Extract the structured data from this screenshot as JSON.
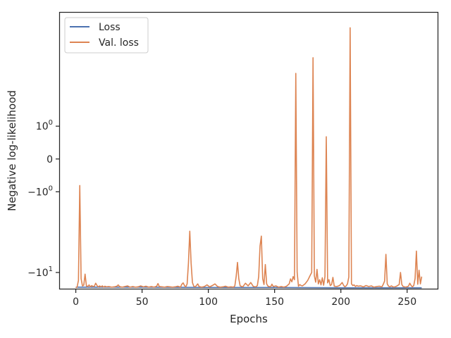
{
  "chart_data": {
    "type": "line",
    "title": "",
    "xlabel": "Epochs",
    "ylabel": "Negative log-likelihood",
    "yscale": "symlog",
    "xlim": [
      -12,
      273
    ],
    "ylim": [
      -14.5,
      21
    ],
    "grid": false,
    "legend_position": "top-left",
    "x_ticks": [
      {
        "value": 0,
        "label": "0"
      },
      {
        "value": 50,
        "label": "50"
      },
      {
        "value": 100,
        "label": "100"
      },
      {
        "value": 150,
        "label": "150"
      },
      {
        "value": 200,
        "label": "200"
      },
      {
        "value": 250,
        "label": "250"
      }
    ],
    "y_ticks": [
      {
        "value": 1,
        "base": "10",
        "exp": "0",
        "sign": ""
      },
      {
        "value": 0,
        "base": "0",
        "exp": "",
        "sign": ""
      },
      {
        "value": -1,
        "base": "10",
        "exp": "0",
        "sign": "−"
      },
      {
        "value": -10,
        "base": "10",
        "exp": "1",
        "sign": "−"
      }
    ],
    "series": [
      {
        "name": "Loss",
        "color": "#4c72b0",
        "points": [
          [
            0,
            -14.0
          ],
          [
            50,
            -14.0
          ],
          [
            100,
            -14.1
          ],
          [
            150,
            -14.1
          ],
          [
            200,
            -14.2
          ],
          [
            261,
            -14.2
          ]
        ]
      },
      {
        "name": "Val. loss",
        "color": "#dd8452",
        "points": [
          [
            0,
            -14.2
          ],
          [
            1,
            -13.9
          ],
          [
            2,
            -12.0
          ],
          [
            3,
            -0.75
          ],
          [
            4,
            -11.5
          ],
          [
            5,
            -13.6
          ],
          [
            6,
            -13.4
          ],
          [
            7,
            -10.4
          ],
          [
            8,
            -13.6
          ],
          [
            9,
            -13.8
          ],
          [
            10,
            -13.3
          ],
          [
            11,
            -13.9
          ],
          [
            12,
            -13.5
          ],
          [
            13,
            -13.8
          ],
          [
            14,
            -13.7
          ],
          [
            15,
            -12.8
          ],
          [
            16,
            -13.5
          ],
          [
            17,
            -13.9
          ],
          [
            18,
            -13.6
          ],
          [
            19,
            -13.9
          ],
          [
            20,
            -13.6
          ],
          [
            21,
            -14.0
          ],
          [
            22,
            -13.7
          ],
          [
            23,
            -13.9
          ],
          [
            25,
            -13.8
          ],
          [
            27,
            -14.0
          ],
          [
            29,
            -13.9
          ],
          [
            31,
            -13.7
          ],
          [
            32,
            -13.3
          ],
          [
            33,
            -13.8
          ],
          [
            35,
            -14.0
          ],
          [
            37,
            -13.8
          ],
          [
            39,
            -13.6
          ],
          [
            41,
            -14.0
          ],
          [
            43,
            -13.8
          ],
          [
            45,
            -14.0
          ],
          [
            47,
            -13.9
          ],
          [
            49,
            -13.6
          ],
          [
            51,
            -13.9
          ],
          [
            53,
            -13.7
          ],
          [
            55,
            -14.0
          ],
          [
            57,
            -13.8
          ],
          [
            59,
            -14.0
          ],
          [
            61,
            -13.7
          ],
          [
            62,
            -12.9
          ],
          [
            63,
            -13.8
          ],
          [
            65,
            -13.9
          ],
          [
            67,
            -14.0
          ],
          [
            69,
            -13.8
          ],
          [
            71,
            -13.9
          ],
          [
            73,
            -14.0
          ],
          [
            75,
            -13.9
          ],
          [
            77,
            -13.7
          ],
          [
            79,
            -14.0
          ],
          [
            80,
            -13.1
          ],
          [
            81,
            -12.7
          ],
          [
            82,
            -13.5
          ],
          [
            83,
            -13.9
          ],
          [
            84,
            -13.0
          ],
          [
            85,
            -8.0
          ],
          [
            86,
            -3.6
          ],
          [
            87,
            -8.0
          ],
          [
            88,
            -12.6
          ],
          [
            89,
            -13.7
          ],
          [
            90,
            -13.9
          ],
          [
            91,
            -13.5
          ],
          [
            92,
            -13.0
          ],
          [
            93,
            -13.8
          ],
          [
            95,
            -14.0
          ],
          [
            97,
            -13.8
          ],
          [
            99,
            -13.3
          ],
          [
            101,
            -13.9
          ],
          [
            103,
            -13.5
          ],
          [
            105,
            -13.0
          ],
          [
            107,
            -13.8
          ],
          [
            109,
            -14.0
          ],
          [
            111,
            -13.9
          ],
          [
            113,
            -13.7
          ],
          [
            115,
            -14.0
          ],
          [
            117,
            -13.9
          ],
          [
            119,
            -14.0
          ],
          [
            120,
            -13.6
          ],
          [
            121,
            -11.0
          ],
          [
            122,
            -7.9
          ],
          [
            123,
            -11.6
          ],
          [
            124,
            -13.6
          ],
          [
            126,
            -13.9
          ],
          [
            128,
            -12.8
          ],
          [
            130,
            -13.6
          ],
          [
            132,
            -12.6
          ],
          [
            134,
            -13.8
          ],
          [
            136,
            -13.9
          ],
          [
            137,
            -13.5
          ],
          [
            138,
            -11.0
          ],
          [
            139,
            -5.3
          ],
          [
            140,
            -4.1
          ],
          [
            141,
            -11.5
          ],
          [
            142,
            -13.2
          ],
          [
            143,
            -8.3
          ],
          [
            144,
            -13.0
          ],
          [
            145,
            -13.7
          ],
          [
            147,
            -13.9
          ],
          [
            148,
            -13.1
          ],
          [
            149,
            -13.8
          ],
          [
            151,
            -13.6
          ],
          [
            153,
            -14.0
          ],
          [
            155,
            -13.8
          ],
          [
            157,
            -14.0
          ],
          [
            159,
            -13.7
          ],
          [
            161,
            -13.0
          ],
          [
            162,
            -11.6
          ],
          [
            163,
            -12.4
          ],
          [
            164,
            -11.0
          ],
          [
            165,
            -11.8
          ],
          [
            166,
            5.1
          ],
          [
            167,
            -9.9
          ],
          [
            168,
            -13.7
          ],
          [
            169,
            -13.2
          ],
          [
            170,
            -13.5
          ],
          [
            171,
            -13.6
          ],
          [
            173,
            -13.0
          ],
          [
            175,
            -12.0
          ],
          [
            177,
            -10.6
          ],
          [
            178,
            -10.0
          ],
          [
            179,
            7.5
          ],
          [
            180,
            -10.8
          ],
          [
            181,
            -12.5
          ],
          [
            182,
            -9.3
          ],
          [
            183,
            -13.0
          ],
          [
            184,
            -11.8
          ],
          [
            185,
            -13.3
          ],
          [
            186,
            -11.3
          ],
          [
            187,
            -13.4
          ],
          [
            188,
            -11.0
          ],
          [
            189,
            0.6
          ],
          [
            190,
            -12.7
          ],
          [
            191,
            -11.8
          ],
          [
            192,
            -13.5
          ],
          [
            193,
            -13.2
          ],
          [
            194,
            -11.2
          ],
          [
            195,
            -13.7
          ],
          [
            197,
            -13.8
          ],
          [
            199,
            -13.5
          ],
          [
            201,
            -12.6
          ],
          [
            202,
            -13.4
          ],
          [
            203,
            -13.9
          ],
          [
            204,
            -13.6
          ],
          [
            205,
            -13.0
          ],
          [
            206,
            -11.1
          ],
          [
            207,
            15.0
          ],
          [
            208,
            -13.0
          ],
          [
            209,
            -13.5
          ],
          [
            210,
            -13.3
          ],
          [
            211,
            -13.8
          ],
          [
            212,
            -13.5
          ],
          [
            213,
            -13.7
          ],
          [
            215,
            -13.6
          ],
          [
            217,
            -13.9
          ],
          [
            219,
            -13.5
          ],
          [
            221,
            -13.8
          ],
          [
            223,
            -13.6
          ],
          [
            225,
            -14.0
          ],
          [
            227,
            -13.8
          ],
          [
            229,
            -13.7
          ],
          [
            231,
            -13.9
          ],
          [
            232,
            -13.1
          ],
          [
            233,
            -12.2
          ],
          [
            234,
            -6.5
          ],
          [
            235,
            -13.0
          ],
          [
            236,
            -13.7
          ],
          [
            237,
            -13.9
          ],
          [
            238,
            -13.6
          ],
          [
            240,
            -14.0
          ],
          [
            242,
            -13.7
          ],
          [
            244,
            -13.2
          ],
          [
            245,
            -10.0
          ],
          [
            246,
            -13.2
          ],
          [
            247,
            -13.8
          ],
          [
            249,
            -14.0
          ],
          [
            251,
            -13.7
          ],
          [
            252,
            -12.8
          ],
          [
            253,
            -13.5
          ],
          [
            254,
            -13.9
          ],
          [
            255,
            -13.5
          ],
          [
            256,
            -11.5
          ],
          [
            257,
            -6.0
          ],
          [
            258,
            -13.1
          ],
          [
            259,
            -9.5
          ],
          [
            260,
            -13.0
          ],
          [
            261,
            -11.0
          ]
        ]
      }
    ]
  }
}
